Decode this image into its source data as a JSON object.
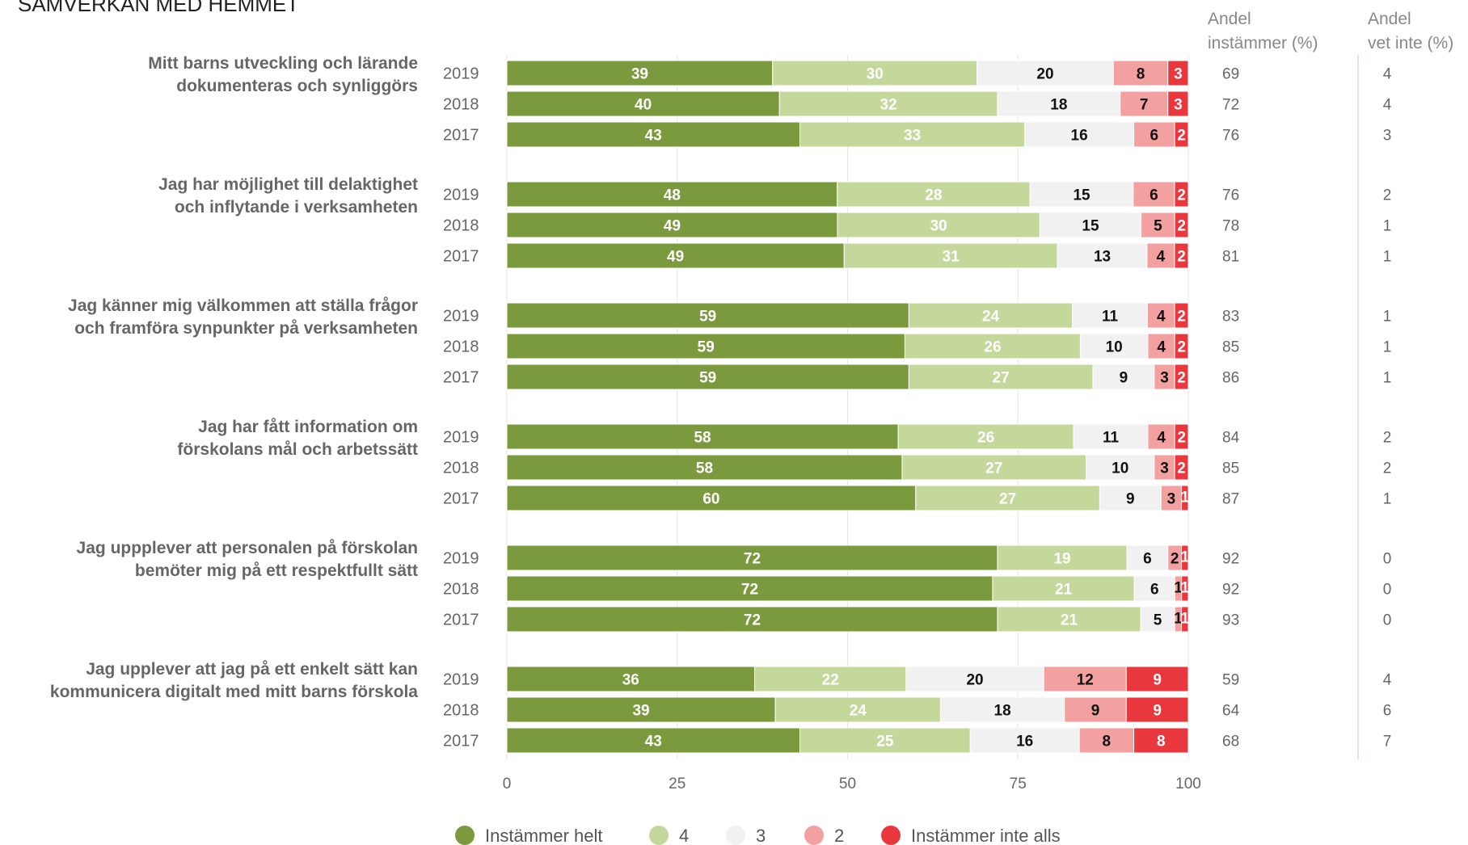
{
  "chart_data": {
    "type": "bar",
    "stacked": true,
    "orientation": "horizontal",
    "title": "SAMVERKAN MED HEMMET",
    "xlim": [
      0,
      100
    ],
    "xticks": [
      "0",
      "25",
      "50",
      "75",
      "100"
    ],
    "grid": true,
    "legend_position": "bottom",
    "series": [
      {
        "name": "Instämmer helt",
        "color": "#7b9a3d",
        "label_color": "#ffffff"
      },
      {
        "name": "4",
        "color": "#c5d89c",
        "label_color": "#ffffff"
      },
      {
        "name": "3",
        "color": "#f1f1f1",
        "label_color": "#111111"
      },
      {
        "name": "2",
        "color": "#f2a0a0",
        "label_color": "#111111"
      },
      {
        "name": "Instämmer inte alls",
        "color": "#e8383d",
        "label_color": "#ffffff"
      }
    ],
    "col_headers": {
      "agree": [
        "Andel",
        "instämmer (%)"
      ],
      "dontknow": [
        "Andel",
        "vet inte (%)"
      ]
    },
    "questions": [
      {
        "lines": [
          "Mitt barns utveckling och lärande",
          "dokumenteras och synliggörs"
        ],
        "rows": [
          {
            "year": "2019",
            "values": [
              39,
              30,
              20,
              8,
              3
            ],
            "agree": "69",
            "dontknow": "4"
          },
          {
            "year": "2018",
            "values": [
              40,
              32,
              18,
              7,
              3
            ],
            "agree": "72",
            "dontknow": "4"
          },
          {
            "year": "2017",
            "values": [
              43,
              33,
              16,
              6,
              2
            ],
            "agree": "76",
            "dontknow": "3"
          }
        ]
      },
      {
        "lines": [
          "Jag har möjlighet till delaktighet",
          "och inflytande i verksamheten"
        ],
        "rows": [
          {
            "year": "2019",
            "values": [
              48,
              28,
              15,
              6,
              2
            ],
            "agree": "76",
            "dontknow": "2"
          },
          {
            "year": "2018",
            "values": [
              49,
              30,
              15,
              5,
              2
            ],
            "agree": "78",
            "dontknow": "1"
          },
          {
            "year": "2017",
            "values": [
              49,
              31,
              13,
              4,
              2
            ],
            "agree": "81",
            "dontknow": "1"
          }
        ]
      },
      {
        "lines": [
          "Jag känner mig välkommen att ställa frågor",
          "och framföra synpunkter på verksamheten"
        ],
        "rows": [
          {
            "year": "2019",
            "values": [
              59,
              24,
              11,
              4,
              2
            ],
            "agree": "83",
            "dontknow": "1"
          },
          {
            "year": "2018",
            "values": [
              59,
              26,
              10,
              4,
              2
            ],
            "agree": "85",
            "dontknow": "1"
          },
          {
            "year": "2017",
            "values": [
              59,
              27,
              9,
              3,
              2
            ],
            "agree": "86",
            "dontknow": "1"
          }
        ]
      },
      {
        "lines": [
          "Jag har fått information om",
          "förskolans mål och arbetssätt"
        ],
        "rows": [
          {
            "year": "2019",
            "values": [
              58,
              26,
              11,
              4,
              2
            ],
            "agree": "84",
            "dontknow": "2"
          },
          {
            "year": "2018",
            "values": [
              58,
              27,
              10,
              3,
              2
            ],
            "agree": "85",
            "dontknow": "2"
          },
          {
            "year": "2017",
            "values": [
              60,
              27,
              9,
              3,
              1
            ],
            "agree": "87",
            "dontknow": "1"
          }
        ]
      },
      {
        "lines": [
          "Jag uppplever att personalen på förskolan",
          "bemöter mig på ett respektfullt sätt"
        ],
        "rows": [
          {
            "year": "2019",
            "values": [
              72,
              19,
              6,
              2,
              1
            ],
            "agree": "92",
            "dontknow": "0"
          },
          {
            "year": "2018",
            "values": [
              72,
              21,
              6,
              1,
              1
            ],
            "agree": "92",
            "dontknow": "0"
          },
          {
            "year": "2017",
            "values": [
              72,
              21,
              5,
              1,
              1
            ],
            "agree": "93",
            "dontknow": "0"
          }
        ]
      },
      {
        "lines": [
          "Jag upplever att jag på ett enkelt sätt kan",
          "kommunicera digitalt med mitt barns förskola"
        ],
        "rows": [
          {
            "year": "2019",
            "values": [
              36,
              22,
              20,
              12,
              9
            ],
            "agree": "59",
            "dontknow": "4"
          },
          {
            "year": "2018",
            "values": [
              39,
              24,
              18,
              9,
              9
            ],
            "agree": "64",
            "dontknow": "6"
          },
          {
            "year": "2017",
            "values": [
              43,
              25,
              16,
              8,
              8
            ],
            "agree": "68",
            "dontknow": "7"
          }
        ]
      }
    ]
  }
}
